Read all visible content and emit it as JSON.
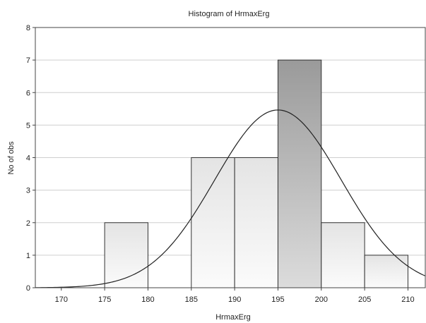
{
  "chart_data": {
    "type": "bar",
    "title": "Histogram of HrmaxErg",
    "xlabel": "HrmaxErg",
    "ylabel": "No of obs",
    "bins": [
      {
        "from": 175,
        "to": 180,
        "count": 2
      },
      {
        "from": 185,
        "to": 190,
        "count": 4
      },
      {
        "from": 190,
        "to": 195,
        "count": 4
      },
      {
        "from": 195,
        "to": 200,
        "count": 7
      },
      {
        "from": 200,
        "to": 205,
        "count": 2
      },
      {
        "from": 205,
        "to": 210,
        "count": 1
      }
    ],
    "x_ticks": [
      170,
      175,
      180,
      185,
      190,
      195,
      200,
      205,
      210
    ],
    "y_ticks": [
      0,
      1,
      2,
      3,
      4,
      5,
      6,
      7,
      8
    ],
    "xlim": [
      167,
      212
    ],
    "ylim": [
      0,
      8
    ],
    "grid": true,
    "normal_curve": {
      "mean": 195,
      "sd": 7.3,
      "n": 20,
      "bin_width": 5
    }
  }
}
